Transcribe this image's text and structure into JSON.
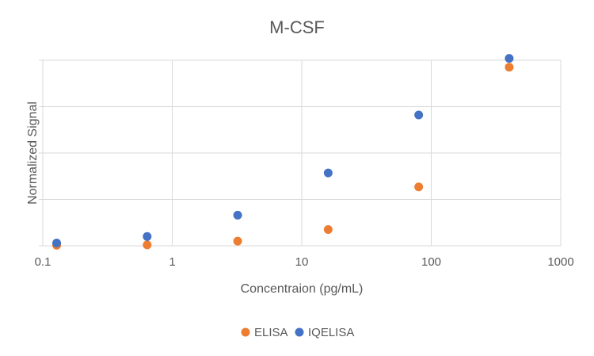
{
  "chart_data": {
    "type": "scatter",
    "title": "M-CSF",
    "xlabel": "Concentraion (pg/mL)",
    "ylabel": "Normalized Signal",
    "x_scale": "log",
    "xlim": [
      0.1,
      1000
    ],
    "x_ticks": [
      "0.1",
      "1",
      "10",
      "100",
      "1000"
    ],
    "ylim": [
      0,
      4
    ],
    "y_tick_labels_shown": false,
    "grid": true,
    "legend": "bottom",
    "series": [
      {
        "name": "ELISA",
        "color": "#ED7D31",
        "x": [
          0.128,
          0.64,
          3.2,
          16,
          80,
          400
        ],
        "y": [
          0.01,
          0.02,
          0.1,
          0.35,
          1.27,
          3.85
        ]
      },
      {
        "name": "IQELISA",
        "color": "#4472C4",
        "x": [
          0.128,
          0.64,
          3.2,
          16,
          80,
          400
        ],
        "y": [
          0.06,
          0.2,
          0.66,
          1.57,
          2.82,
          4.04
        ]
      }
    ]
  }
}
